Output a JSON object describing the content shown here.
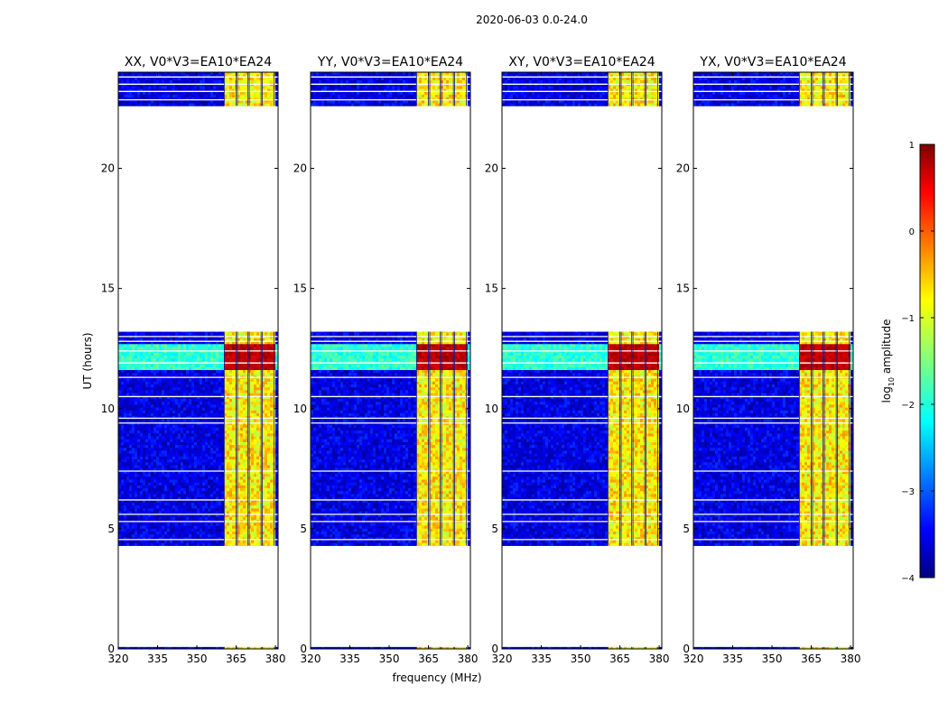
{
  "figure": {
    "suptitle": "2020-06-03 0.0-24.0",
    "xlabel": "frequency (MHz)",
    "ylabel": "UT (hours)"
  },
  "chart_data": {
    "type": "heatmap",
    "title": "2020-06-03 0.0-24.0",
    "xlabel": "frequency (MHz)",
    "ylabel": "UT (hours)",
    "xlim": [
      320,
      381
    ],
    "ylim": [
      0,
      24
    ],
    "xticks": [
      320,
      335,
      350,
      365,
      380
    ],
    "yticks": [
      0,
      5,
      10,
      15,
      20
    ],
    "colorbar": {
      "label": "log$_{10}$ amplitude",
      "label_main": "log",
      "label_sub": "10",
      "label_rest": " amplitude",
      "colormap": "jet",
      "range": [
        -4,
        1
      ],
      "ticks": [
        -4,
        -3,
        -2,
        -1,
        0,
        1
      ]
    },
    "panels": [
      {
        "title": "XX, V0*V3=EA10*EA24",
        "peak": 1.0
      },
      {
        "title": "YY, V0*V3=EA10*EA24",
        "peak": 1.0
      },
      {
        "title": "XY, V0*V3=EA10*EA24",
        "peak": 1.0
      },
      {
        "title": "YX, V0*V3=EA10*EA24",
        "peak": 1.0
      }
    ],
    "observation_time_ranges_hours": [
      [
        0.0,
        0.08
      ],
      [
        4.3,
        13.2
      ],
      [
        22.6,
        24.0
      ]
    ],
    "gap_lines_hours": [
      4.55,
      5.3,
      5.6,
      6.2,
      7.4,
      9.4,
      9.6,
      10.5,
      11.3,
      11.9,
      12.4,
      12.8,
      13.0,
      22.85,
      23.2,
      23.5,
      23.8
    ],
    "interference_freq_ranges_mhz": [
      [
        360.5,
        365.0
      ],
      [
        365.5,
        369.5
      ],
      [
        370.0,
        374.5
      ],
      [
        375.0,
        379.5
      ]
    ],
    "background_level_log10": -3.5,
    "band_level_log10": -0.8,
    "strong_event_hours": [
      11.55,
      12.6
    ],
    "strong_event_level_log10": 0.5
  }
}
